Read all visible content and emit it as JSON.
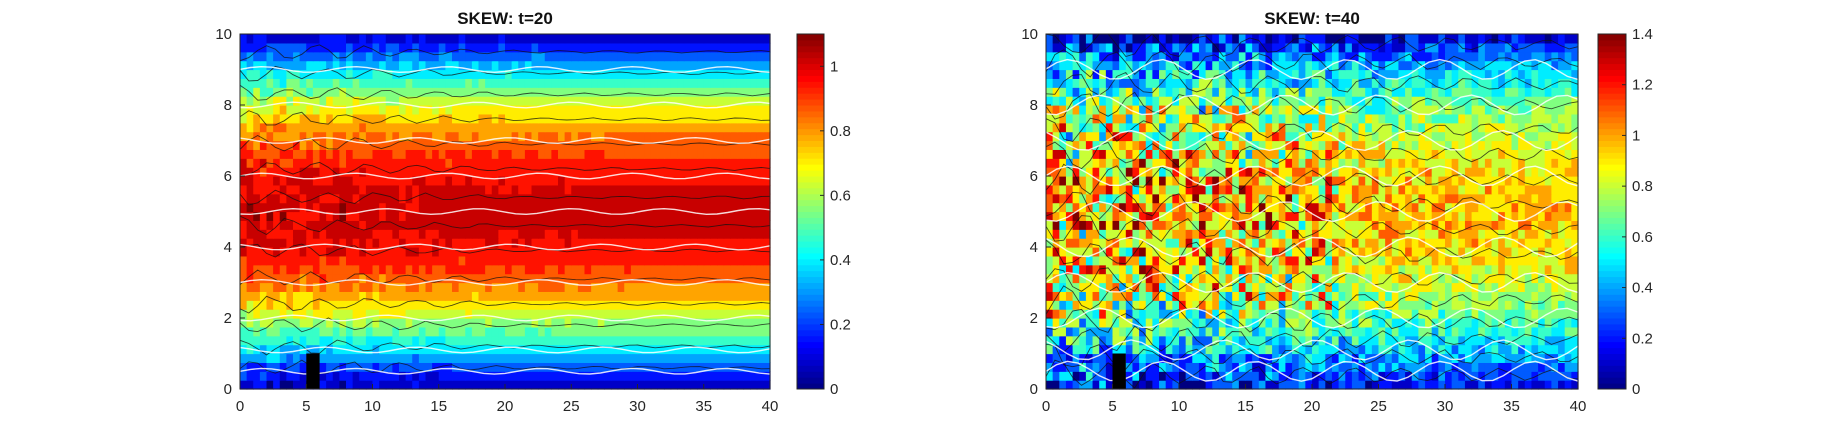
{
  "chart_data": [
    {
      "type": "heatmap",
      "title": "SKEW: t=20",
      "xlim": [
        0,
        40
      ],
      "ylim": [
        0,
        10
      ],
      "xticks": [
        "0",
        "5",
        "10",
        "15",
        "20",
        "25",
        "30",
        "35",
        "40"
      ],
      "yticks": [
        "0",
        "2",
        "4",
        "6",
        "8",
        "10"
      ],
      "colorbar": {
        "range": [
          0,
          1.1
        ],
        "ticks": [
          "0",
          "0.2",
          "0.4",
          "0.6",
          "0.8",
          "1"
        ],
        "tick_values": [
          0,
          0.2,
          0.4,
          0.6,
          0.8,
          1.0
        ]
      },
      "colormap": "jet",
      "field": {
        "description_y": [
          0,
          0.5,
          1,
          1.5,
          2,
          2.5,
          3,
          3.5,
          4,
          4.5,
          5,
          5.5,
          6,
          6.5,
          7,
          7.5,
          8,
          8.5,
          9,
          9.5,
          10
        ],
        "profile": [
          0.05,
          0.18,
          0.35,
          0.48,
          0.62,
          0.74,
          0.85,
          0.92,
          0.97,
          1.0,
          1.02,
          1.0,
          0.97,
          0.92,
          0.85,
          0.76,
          0.66,
          0.52,
          0.38,
          0.22,
          0.06
        ]
      },
      "obstacle": {
        "x": [
          5,
          6
        ],
        "y": [
          0,
          1
        ]
      }
    },
    {
      "type": "heatmap",
      "title": "SKEW: t=40",
      "xlim": [
        0,
        40
      ],
      "ylim": [
        0,
        10
      ],
      "xticks": [
        "0",
        "5",
        "10",
        "15",
        "20",
        "25",
        "30",
        "35",
        "40"
      ],
      "yticks": [
        "0",
        "2",
        "4",
        "6",
        "8",
        "10"
      ],
      "colorbar": {
        "range": [
          0,
          1.4
        ],
        "ticks": [
          "0",
          "0.2",
          "0.4",
          "0.6",
          "0.8",
          "1",
          "1.2",
          "1.4"
        ],
        "tick_values": [
          0,
          0.2,
          0.4,
          0.6,
          0.8,
          1.0,
          1.2,
          1.4
        ]
      },
      "colormap": "jet",
      "field": {
        "description_y": [
          0,
          0.5,
          1,
          1.5,
          2,
          2.5,
          3,
          3.5,
          4,
          4.5,
          5,
          5.5,
          6,
          6.5,
          7,
          7.5,
          8,
          8.5,
          9,
          9.5,
          10
        ],
        "profile": [
          0.15,
          0.3,
          0.42,
          0.55,
          0.65,
          0.75,
          0.82,
          0.88,
          0.92,
          0.95,
          0.97,
          0.95,
          0.92,
          0.88,
          0.82,
          0.75,
          0.68,
          0.58,
          0.45,
          0.3,
          0.1
        ]
      },
      "obstacle": {
        "x": [
          5,
          6
        ],
        "y": [
          0,
          1
        ]
      }
    }
  ]
}
